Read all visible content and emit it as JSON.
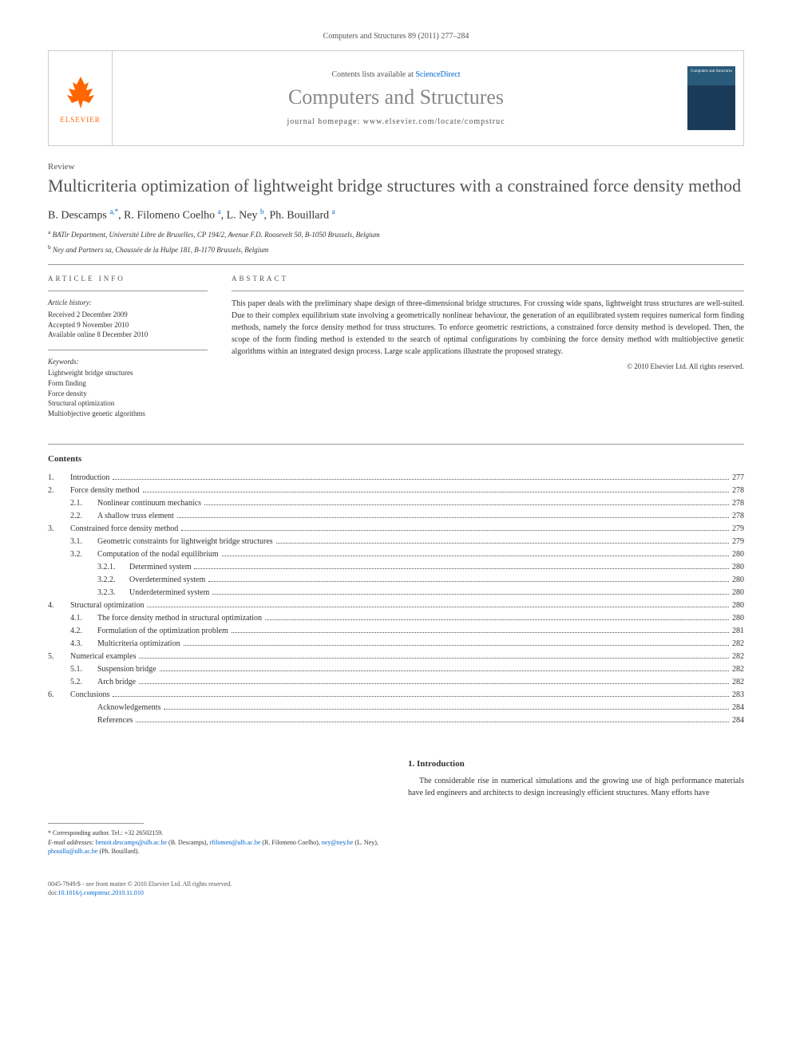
{
  "journal_ref": "Computers and Structures 89 (2011) 277–284",
  "header": {
    "contents_prefix": "Contents lists available at ",
    "contents_link": "ScienceDirect",
    "journal_name": "Computers and Structures",
    "homepage_prefix": "journal homepage: ",
    "homepage_url": "www.elsevier.com/locate/compstruc",
    "publisher": "ELSEVIER",
    "cover_title": "Computers and Structures"
  },
  "article_type": "Review",
  "title": "Multicriteria optimization of lightweight bridge structures with a constrained force density method",
  "authors_html": "B. Descamps <sup>a,*</sup>, R. Filomeno Coelho <sup>a</sup>, L. Ney <sup>b</sup>, Ph. Bouillard <sup>a</sup>",
  "affiliations": [
    {
      "sup": "a",
      "text": "BATir Department, Université Libre de Bruxelles, CP 194/2, Avenue F.D. Roosevelt 50, B-1050 Brussels, Belgium"
    },
    {
      "sup": "b",
      "text": "Ney and Partners sa, Chaussée de la Hulpe 181, B-1170 Brussels, Belgium"
    }
  ],
  "info": {
    "heading": "ARTICLE INFO",
    "history_label": "Article history:",
    "history": [
      "Received 2 December 2009",
      "Accepted 9 November 2010",
      "Available online 8 December 2010"
    ],
    "keywords_label": "Keywords:",
    "keywords": [
      "Lightweight bridge structures",
      "Form finding",
      "Force density",
      "Structural optimization",
      "Multiobjective genetic algorithms"
    ]
  },
  "abstract": {
    "heading": "ABSTRACT",
    "text": "This paper deals with the preliminary shape design of three-dimensional bridge structures. For crossing wide spans, lightweight truss structures are well-suited. Due to their complex equilibrium state involving a geometrically nonlinear behaviour, the generation of an equilibrated system requires numerical form finding methods, namely the force density method for truss structures. To enforce geometric restrictions, a constrained force density method is developed. Then, the scope of the form finding method is extended to the search of optimal configurations by combining the force density method with multiobjective genetic algorithms within an integrated design process. Large scale applications illustrate the proposed strategy.",
    "copyright": "© 2010 Elsevier Ltd. All rights reserved."
  },
  "contents_heading": "Contents",
  "toc": [
    {
      "level": 0,
      "num": "1.",
      "label": "Introduction",
      "page": "277"
    },
    {
      "level": 0,
      "num": "2.",
      "label": "Force density method",
      "page": "278"
    },
    {
      "level": 1,
      "num": "2.1.",
      "label": "Nonlinear continuum mechanics",
      "page": "278"
    },
    {
      "level": 1,
      "num": "2.2.",
      "label": "A shallow truss element",
      "page": "278"
    },
    {
      "level": 0,
      "num": "3.",
      "label": "Constrained force density method",
      "page": "279"
    },
    {
      "level": 1,
      "num": "3.1.",
      "label": "Geometric constraints for lightweight bridge structures",
      "page": "279"
    },
    {
      "level": 1,
      "num": "3.2.",
      "label": "Computation of the nodal equilibrium",
      "page": "280"
    },
    {
      "level": 2,
      "num": "3.2.1.",
      "label": "Determined system",
      "page": "280"
    },
    {
      "level": 2,
      "num": "3.2.2.",
      "label": "Overdetermined system",
      "page": "280"
    },
    {
      "level": 2,
      "num": "3.2.3.",
      "label": "Underdetermined system",
      "page": "280"
    },
    {
      "level": 0,
      "num": "4.",
      "label": "Structural optimization",
      "page": "280"
    },
    {
      "level": 1,
      "num": "4.1.",
      "label": "The force density method in structural optimization",
      "page": "280"
    },
    {
      "level": 1,
      "num": "4.2.",
      "label": "Formulation of the optimization problem",
      "page": "281"
    },
    {
      "level": 1,
      "num": "4.3.",
      "label": "Multicriteria optimization",
      "page": "282"
    },
    {
      "level": 0,
      "num": "5.",
      "label": "Numerical examples",
      "page": "282"
    },
    {
      "level": 1,
      "num": "5.1.",
      "label": "Suspension bridge",
      "page": "282"
    },
    {
      "level": 1,
      "num": "5.2.",
      "label": "Arch bridge",
      "page": "282"
    },
    {
      "level": 0,
      "num": "6.",
      "label": "Conclusions",
      "page": "283"
    },
    {
      "level": 1,
      "num": "",
      "label": "Acknowledgements",
      "page": "284"
    },
    {
      "level": 1,
      "num": "",
      "label": "References",
      "page": "284"
    }
  ],
  "footnote": {
    "corresponding": "* Corresponding author. Tel.: +32 26502159.",
    "email_label": "E-mail addresses:",
    "emails": [
      {
        "addr": "benoit.descamps@ulb.ac.be",
        "who": "(B. Descamps)"
      },
      {
        "addr": "rfilomen@ulb.ac.be",
        "who": "(R. Filomeno Coelho)"
      },
      {
        "addr": "ney@ney.be",
        "who": "(L. Ney)"
      },
      {
        "addr": "pbouilla@ulb.ac.be",
        "who": "(Ph. Bouillard)"
      }
    ]
  },
  "intro": {
    "heading": "1. Introduction",
    "text": "The considerable rise in numerical simulations and the growing use of high performance materials have led engineers and architects to design increasingly efficient structures. Many efforts have"
  },
  "footer": {
    "issn": "0045-7949/$ - see front matter © 2010 Elsevier Ltd. All rights reserved.",
    "doi_label": "doi:",
    "doi": "10.1016/j.compstruc.2010.11.010"
  },
  "colors": {
    "link": "#0066cc",
    "orange": "#ff6600",
    "gray_text": "#555555",
    "title_gray": "#888888"
  }
}
